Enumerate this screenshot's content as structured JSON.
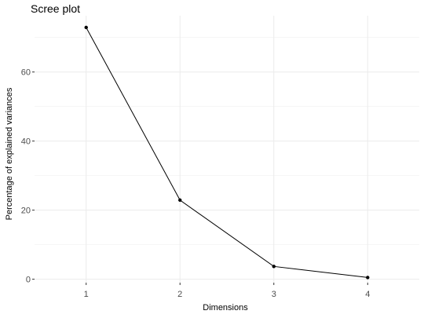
{
  "chart_data": {
    "type": "line",
    "title": "Scree plot",
    "xlabel": "Dimensions",
    "ylabel": "Percentage of explained variances",
    "x": [
      1,
      2,
      3,
      4
    ],
    "values": [
      72.9,
      22.9,
      3.7,
      0.5
    ],
    "xlim": [
      0.45,
      4.55
    ],
    "ylim": [
      -1.0,
      76.3
    ],
    "xticks": [
      1,
      2,
      3,
      4
    ],
    "yticks": [
      0,
      20,
      40,
      60
    ],
    "grid": true,
    "colors": {
      "line": "#000000",
      "point": "#000000",
      "grid_major": "#ebebeb",
      "grid_minor": "#f4f4f4",
      "text": "#000000",
      "tick_text": "#4d4d4d",
      "axis_tick": "#333333"
    }
  }
}
